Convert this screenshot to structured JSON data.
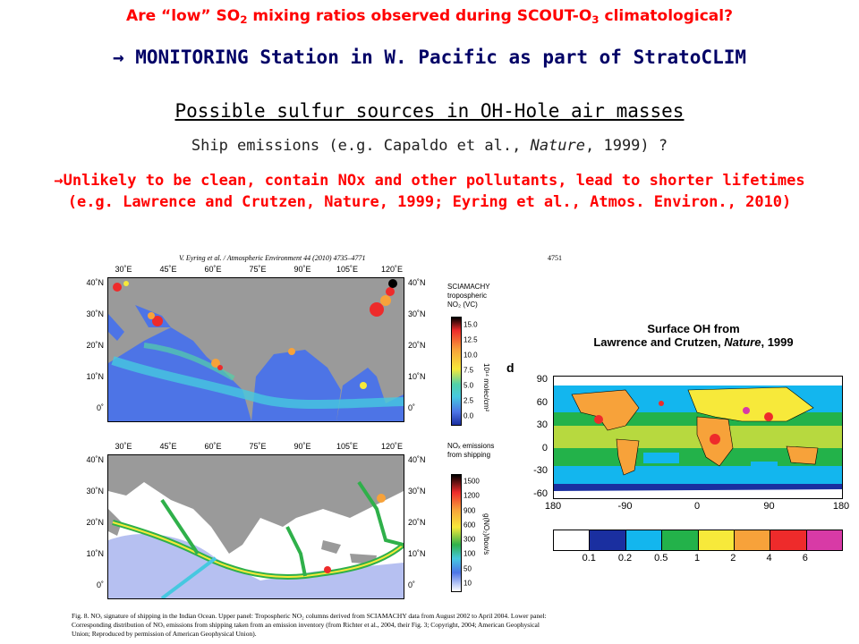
{
  "header": {
    "line1_prefix": "Are “low” SO",
    "line1_sub1": "2",
    "line1_mid": " mixing ratios observed during SCOUT-O",
    "line1_sub2": "3",
    "line1_suffix": " climatological?",
    "line2": "→ MONITORING Station in W. Pacific as part of StratoCLIM",
    "line3": "Possible sulfur sources in OH-Hole air masses",
    "line4_prefix": "Ship emissions (e.g. Capaldo et al., ",
    "line4_italic": "Nature",
    "line4_suffix": ", 1999) ?",
    "line5a": "→Unlikely to be clean, contain NOx and other pollutants, lead to shorter lifetimes",
    "line5b": "(e.g. Lawrence and Crutzen, Nature, 1999; Eyring et al., Atmos. Environ., 2010)"
  },
  "figure": {
    "journal_header": "V. Eyring et al. / Atmospheric Environment 44 (2010) 4735–4771",
    "page_number": "4751",
    "lon_ticks": [
      "30˚E",
      "45˚E",
      "60˚E",
      "75˚E",
      "90˚E",
      "105˚E",
      "120˚E"
    ],
    "lat_ticks_left": [
      "40˚N",
      "30˚N",
      "20˚N",
      "10˚N",
      "0˚"
    ],
    "lat_ticks_right": [
      "40˚N",
      "30˚N",
      "20˚N",
      "10˚N",
      "0˚"
    ],
    "upper_cbar_title_1": "SCIAMACHY",
    "upper_cbar_title_2": "tropospheric",
    "upper_cbar_title_3": "NO₂ (VC)",
    "upper_cbar_unit": "10¹⁴ molec/cm²",
    "upper_cbar_values": [
      "15.0",
      "12.5",
      "10.0",
      "7.5",
      "5.0",
      "2.5",
      "0.0"
    ],
    "lower_cbar_title_1": "NOₓ emissions",
    "lower_cbar_title_2": "from shipping",
    "lower_cbar_unit": "g(NO₂)/box/s",
    "lower_cbar_values": [
      "1500",
      "1200",
      "900",
      "600",
      "300",
      "100",
      "50",
      "10"
    ],
    "caption": "Fig. 8. NOₓ signature of shipping in the Indian Ocean. Upper panel: Tropospheric NO₂ columns derived from SCIAMACHY data from August 2002 to April 2004. Lower panel: Corresponding distribution of NOₓ emissions from shipping taken from an emission inventory (from Richter et al., 2004, their Fig. 3; Copyright, 2004; American Geophysical Union; Reproduced by permission of American Geophysical Union)."
  },
  "oh_figure": {
    "title_line1": "Surface OH from",
    "title_line2_prefix": "Lawrence and Crutzen, ",
    "title_line2_italic": "Nature",
    "title_line2_suffix": ", 1999",
    "panel_letter": "d",
    "lat_ticks": [
      "90",
      "60",
      "30",
      "0",
      "-30",
      "-60"
    ],
    "lon_ticks": [
      "180",
      "-90",
      "0",
      "90",
      "180"
    ],
    "legend_values": [
      "0.1",
      "0.2",
      "0.5",
      "1",
      "2",
      "4",
      "6"
    ],
    "legend_colors": [
      "#ffffff",
      "#1a2fa0",
      "#13b6ee",
      "#23b24a",
      "#f7e93a",
      "#f7a23a",
      "#ee2b2b",
      "#d83aa6"
    ]
  },
  "colors": {
    "red_text": "#ff0000",
    "navy_text": "#000066",
    "map_gray": "#9a9a9a",
    "ocean_blue": "#4a6fe0"
  }
}
